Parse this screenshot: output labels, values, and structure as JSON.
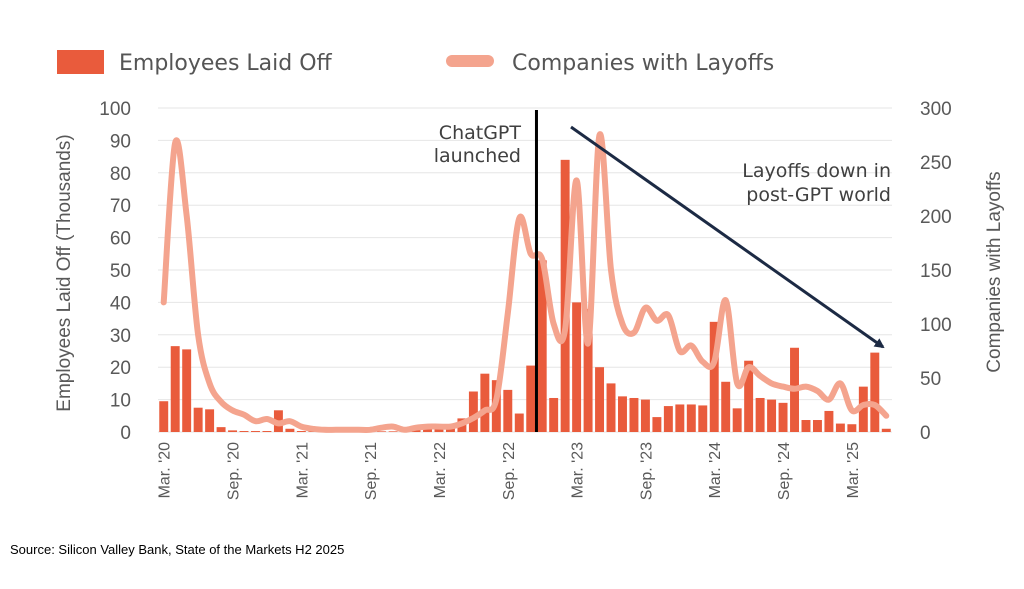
{
  "chart_data": {
    "type": "bar+line",
    "legend": {
      "bar_label": "Employees Laid Off",
      "line_label": "Companies with Layoffs",
      "placement": "top-left"
    },
    "left_axis": {
      "title": "Employees Laid Off (Thousands)",
      "range": [
        0,
        100
      ],
      "ticks": [
        "0",
        "10",
        "20",
        "30",
        "40",
        "50",
        "60",
        "70",
        "80",
        "90",
        "100"
      ]
    },
    "right_axis": {
      "title": "Companies with Layoffs",
      "range": [
        0,
        300
      ],
      "ticks": [
        "0",
        "50",
        "100",
        "150",
        "200",
        "250",
        "300"
      ]
    },
    "x_labels": [
      "Mar. '20",
      "Sep. '20",
      "Mar. '21",
      "Sep. '21",
      "Mar. '22",
      "Sep. '22",
      "Mar. '23",
      "Sep. '23",
      "Mar. '24",
      "Sep. '24",
      "Mar. '25"
    ],
    "months": [
      "Mar 2020",
      "Apr 2020",
      "May 2020",
      "Jun 2020",
      "Jul 2020",
      "Aug 2020",
      "Sep 2020",
      "Oct 2020",
      "Nov 2020",
      "Dec 2020",
      "Jan 2021",
      "Feb 2021",
      "Mar 2021",
      "Apr 2021",
      "May 2021",
      "Jun 2021",
      "Jul 2021",
      "Aug 2021",
      "Sep 2021",
      "Oct 2021",
      "Nov 2021",
      "Dec 2021",
      "Jan 2022",
      "Feb 2022",
      "Mar 2022",
      "Apr 2022",
      "May 2022",
      "Jun 2022",
      "Jul 2022",
      "Aug 2022",
      "Sep 2022",
      "Oct 2022",
      "Nov 2022",
      "Dec 2022",
      "Jan 2023",
      "Feb 2023",
      "Mar 2023",
      "Apr 2023",
      "May 2023",
      "Jun 2023",
      "Jul 2023",
      "Aug 2023",
      "Sep 2023",
      "Oct 2023",
      "Nov 2023",
      "Dec 2023",
      "Jan 2024",
      "Feb 2024",
      "Mar 2024",
      "Apr 2024",
      "May 2024",
      "Jun 2024",
      "Jul 2024",
      "Aug 2024",
      "Sep 2024",
      "Oct 2024",
      "Nov 2024",
      "Dec 2024",
      "Jan 2025",
      "Feb 2025",
      "Mar 2025",
      "Apr 2025",
      "May 2025",
      "Jun 2025"
    ],
    "employees_laid_off_thousands": [
      9.5,
      26.5,
      25.5,
      7.5,
      7,
      1.5,
      0.5,
      0.3,
      0.3,
      0.3,
      6.7,
      1,
      0.3,
      0.2,
      0.2,
      0.2,
      0.2,
      0.2,
      0.2,
      0.2,
      0.2,
      0.2,
      1,
      0.8,
      1,
      1.5,
      4.2,
      12.5,
      18,
      16,
      13,
      5.7,
      20.5,
      53,
      10.5,
      84,
      40,
      38,
      20,
      15,
      11,
      10.5,
      10,
      4.6,
      8,
      8.5,
      8.5,
      8.2,
      34,
      15.5,
      7.3,
      22,
      10.5,
      10,
      9,
      26,
      3.7,
      3.7,
      6.5,
      2.6,
      2.4,
      14,
      24.5,
      1
    ],
    "companies_with_layoffs": [
      120,
      268,
      200,
      90,
      45,
      28,
      20,
      16,
      10,
      12,
      8,
      10,
      5,
      3,
      2,
      2,
      2,
      2,
      2,
      4,
      5,
      2,
      4,
      5,
      5,
      5,
      8,
      13,
      20,
      30,
      110,
      198,
      165,
      160,
      100,
      95,
      233,
      82,
      275,
      150,
      100,
      92,
      115,
      103,
      108,
      75,
      80,
      65,
      65,
      122,
      45,
      60,
      52,
      45,
      42,
      40,
      42,
      38,
      30,
      45,
      20,
      25,
      25,
      15
    ],
    "annotations": {
      "launch_label_line1": "ChatGPT",
      "launch_label_line2": "launched",
      "trend_label_line1": "Layoffs down in",
      "trend_label_line2": "post-GPT world",
      "launch_month": "Nov 2022"
    },
    "colors": {
      "bar": "#e95b3c",
      "line": "#f4a48e",
      "arrow": "#1c2a44",
      "marker": "#000000"
    }
  },
  "source": "Source: Silicon Valley Bank, State of the Markets H2 2025"
}
